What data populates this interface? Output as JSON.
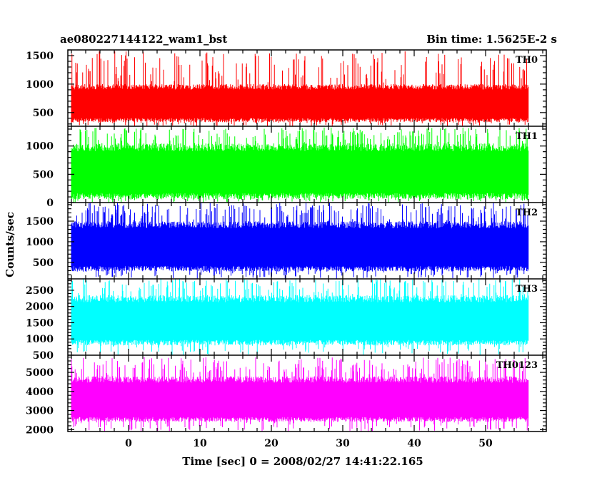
{
  "header": {
    "left_title": "ae080227144122_wam1_bst",
    "right_title": "Bin time: 1.5625E-2 s"
  },
  "chart_data": {
    "type": "line",
    "title": "ae080227144122_wam1_bst",
    "subtitle": "Bin time: 1.5625E-2 s",
    "xlabel": "Time [sec] 0 = 2008/02/27 14:41:22.165",
    "ylabel": "Counts/sec",
    "xlim": [
      -8.5,
      58.5
    ],
    "x_ticks": [
      0,
      10,
      20,
      30,
      40,
      50
    ],
    "data_x_range": [
      -8,
      56
    ],
    "grid": false,
    "legend": "none",
    "panels": [
      {
        "name": "TH0",
        "color": "#ff0000",
        "ylim": [
          260,
          1600
        ],
        "y_ticks": [
          500,
          1000,
          1500
        ],
        "baseline": 330,
        "typical_max": 1000,
        "peak_max": 1580
      },
      {
        "name": "TH1",
        "color": "#00ff00",
        "ylim": [
          0,
          1350
        ],
        "y_ticks": [
          0,
          500,
          1000
        ],
        "baseline": 60,
        "typical_max": 1050,
        "peak_max": 1330
      },
      {
        "name": "TH2",
        "color": "#0000ff",
        "ylim": [
          100,
          1950
        ],
        "y_ticks": [
          500,
          1000,
          1500
        ],
        "baseline": 280,
        "typical_max": 1500,
        "peak_max": 1940
      },
      {
        "name": "TH3",
        "color": "#00ffff",
        "ylim": [
          500,
          2850
        ],
        "y_ticks": [
          500,
          1000,
          1500,
          2000,
          2500
        ],
        "baseline": 800,
        "typical_max": 2350,
        "peak_max": 2850
      },
      {
        "name": "TH0123",
        "color": "#ff00ff",
        "ylim": [
          1900,
          5900
        ],
        "y_ticks": [
          2000,
          3000,
          4000,
          5000
        ],
        "baseline": 2400,
        "typical_max": 4800,
        "peak_max": 5800
      }
    ]
  }
}
